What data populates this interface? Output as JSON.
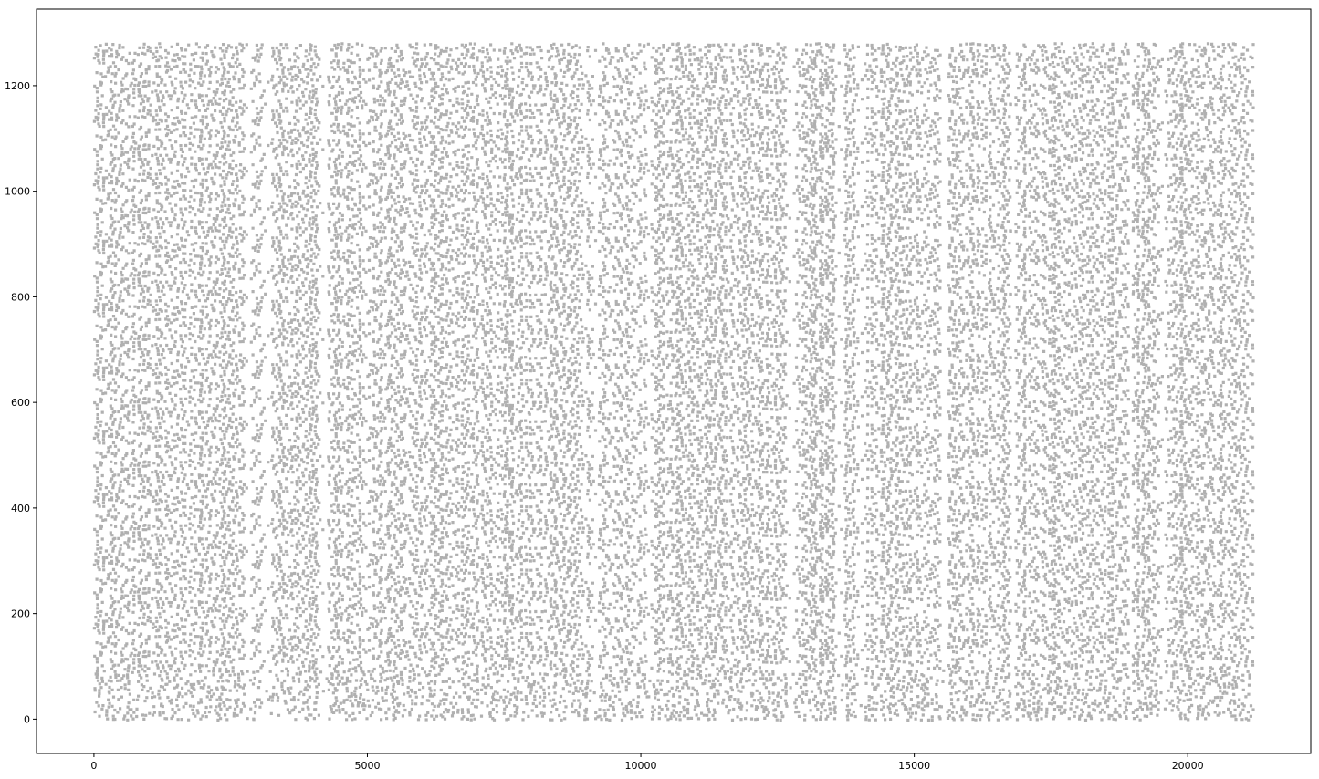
{
  "chart_data": {
    "type": "scatter",
    "title": "",
    "xlabel": "",
    "ylabel": "",
    "xlim": [
      -1050,
      22250
    ],
    "ylim": [
      -65,
      1345
    ],
    "x_ticks": [
      0,
      5000,
      10000,
      15000,
      20000
    ],
    "x_tick_labels": [
      "0",
      "5000",
      "10000",
      "15000",
      "20000"
    ],
    "y_ticks": [
      0,
      200,
      400,
      600,
      800,
      1000,
      1200
    ],
    "y_tick_labels": [
      "0",
      "200",
      "400",
      "600",
      "800",
      "1000",
      "1200"
    ],
    "grid": false,
    "legend": "none",
    "marker_color": "#b0b0b0",
    "data_extent": {
      "x": [
        0,
        21200
      ],
      "y": [
        0,
        1279
      ]
    },
    "dense_gaps_x": [
      2850,
      3150,
      4200,
      9150,
      10150,
      12750,
      13650,
      14050,
      15550,
      16800,
      18950,
      19550
    ],
    "series": [
      {
        "name": "",
        "description_of_points": "Dense raster of ~40,000 spike-like points; each unit (y from 0 to ~1279) emits events across the whole x range 0–21200",
        "approx_point_count": 40000
      }
    ]
  }
}
